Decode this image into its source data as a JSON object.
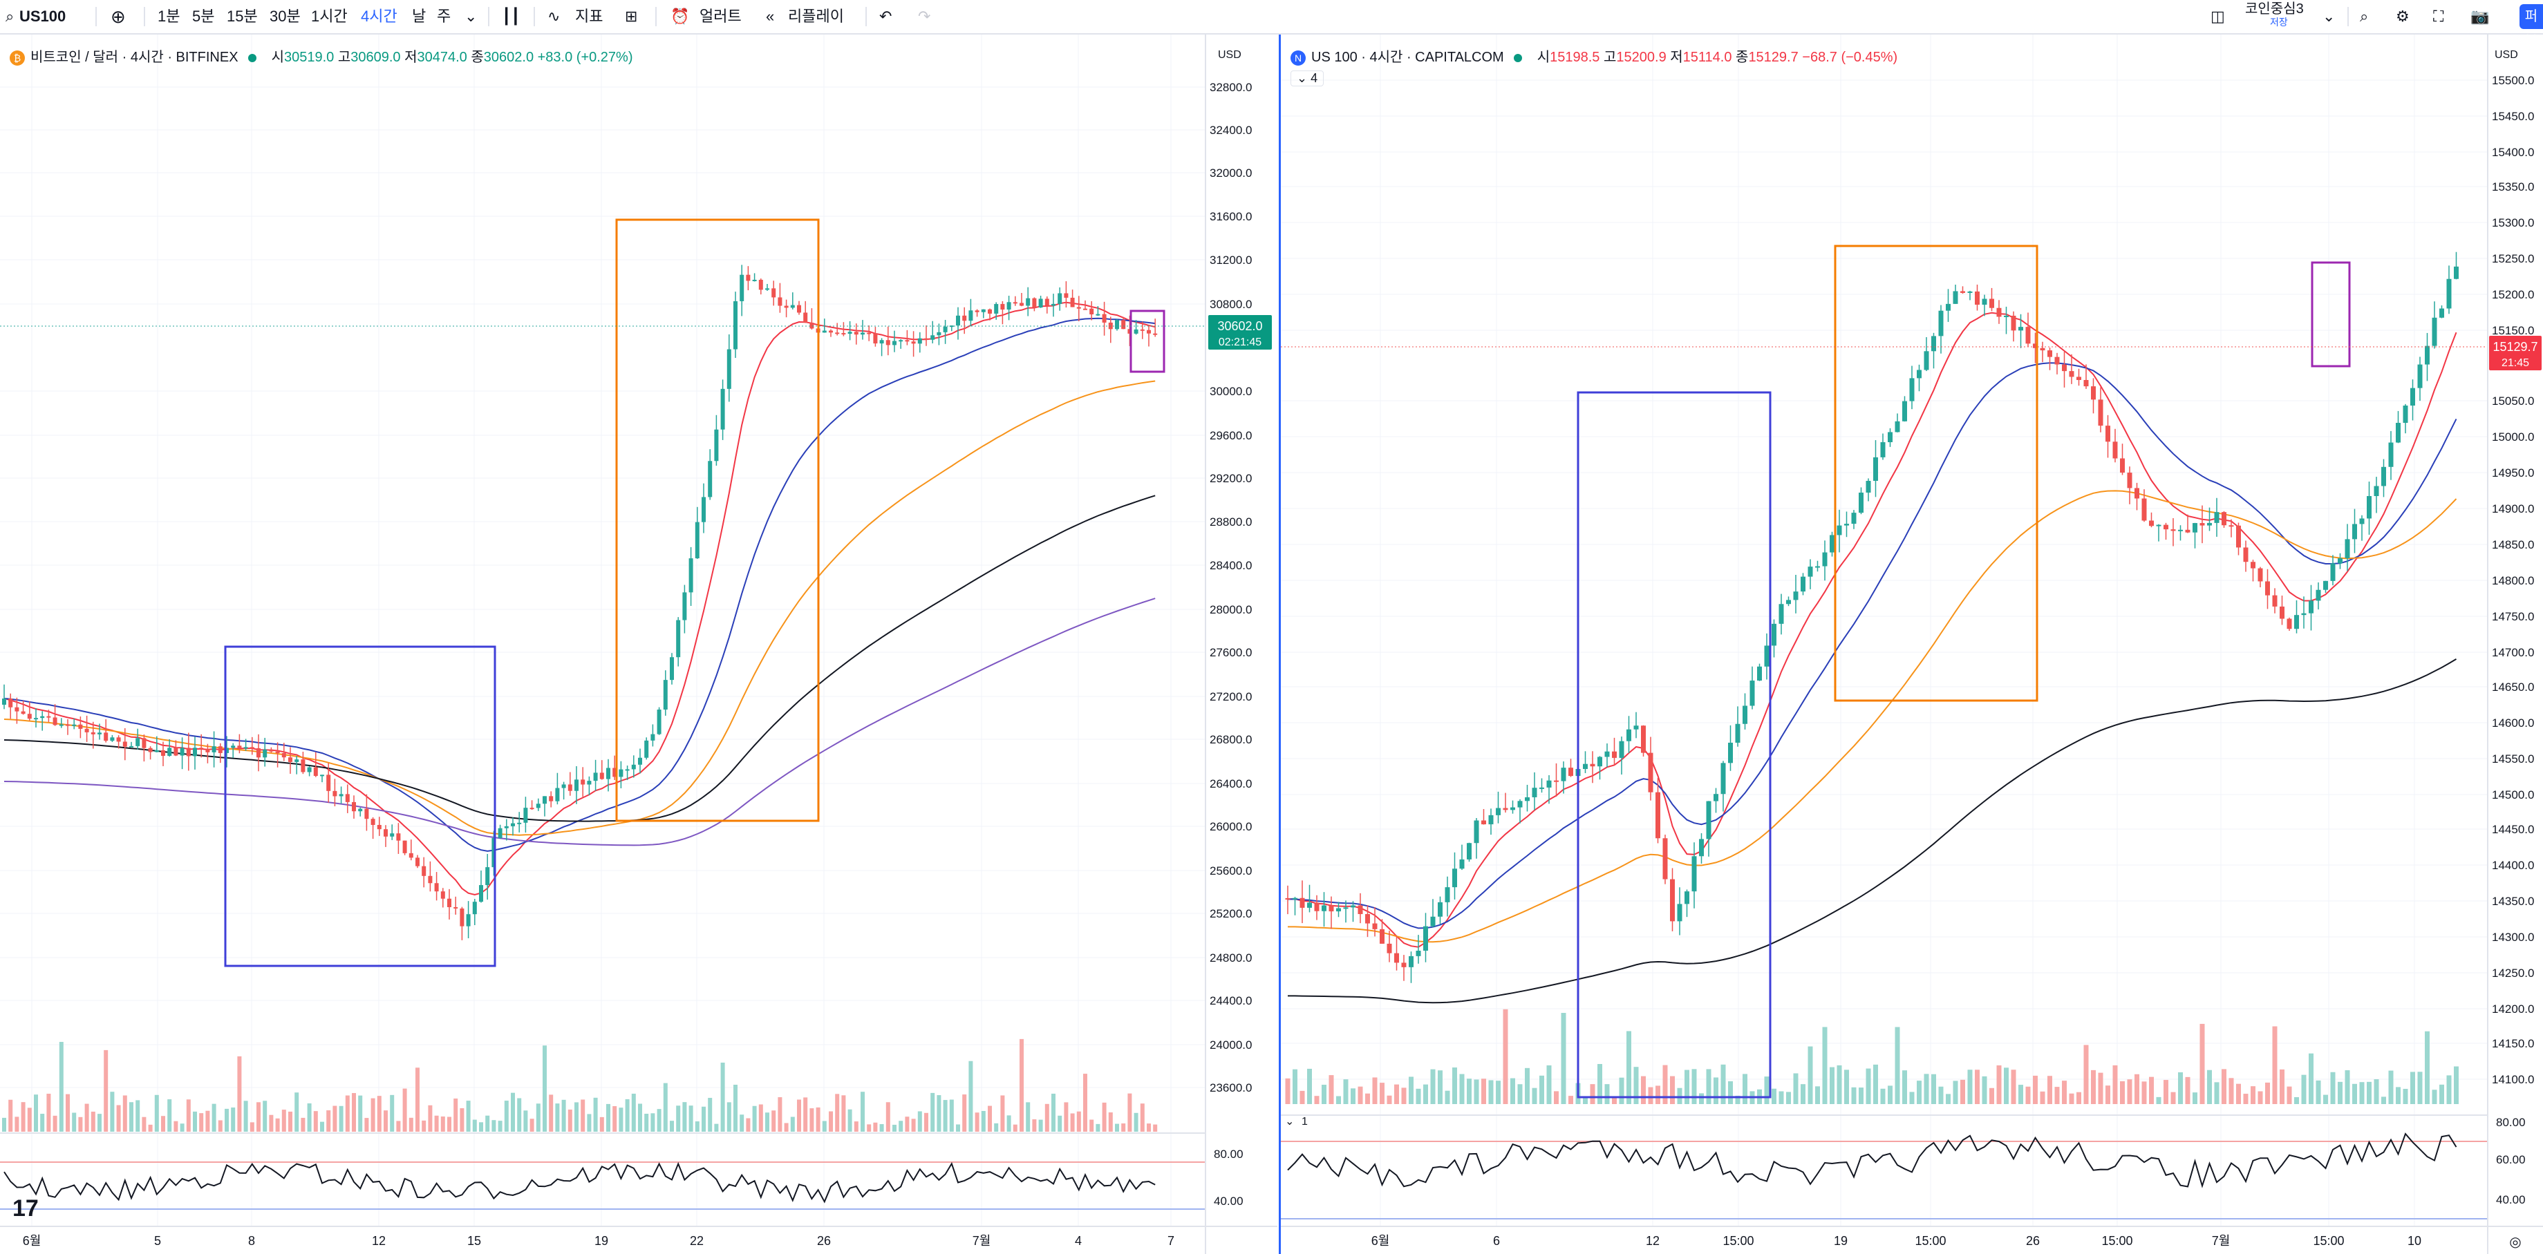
{
  "toolbar": {
    "symbol": "US100",
    "intervals": [
      "1분",
      "5분",
      "15분",
      "30분",
      "1시간",
      "4시간",
      "날",
      "주"
    ],
    "active_interval": "4시간",
    "indicators_label": "지표",
    "alerts_label": "얼러트",
    "replay_label": "리플레이",
    "layout_name": "코인중심3",
    "layout_status": "저장",
    "publish_label": "퍼블"
  },
  "charts": [
    {
      "title": "비트코인 / 달러 · 4시간 · BITFINEX",
      "ohlc": {
        "o_label": "시",
        "o": "30519.0",
        "h_label": "고",
        "h": "30609.0",
        "l_label": "저",
        "l": "30474.0",
        "c_label": "종",
        "c": "30602.0",
        "change": "+83.0 (+0.27%)"
      },
      "currency": "USD",
      "price_ticks": [
        "32800.0",
        "32400.0",
        "32000.0",
        "31600.0",
        "31200.0",
        "30800.0",
        "30000.0",
        "29600.0",
        "29200.0",
        "28800.0",
        "28400.0",
        "28000.0",
        "27600.0",
        "27200.0",
        "26800.0",
        "26400.0",
        "26000.0",
        "25600.0",
        "25200.0",
        "24800.0",
        "24400.0",
        "24000.0",
        "23600.0"
      ],
      "last_price": "30602.0",
      "countdown": "02:21:45",
      "osc_ticks": [
        "80.00",
        "40.00"
      ],
      "time_ticks": [
        "6월",
        "5",
        "8",
        "12",
        "15",
        "19",
        "22",
        "26",
        "7월",
        "4",
        "7"
      ]
    },
    {
      "title": "US 100 · 4시간 · CAPITALCOM",
      "ohlc": {
        "o_label": "시",
        "o": "15198.5",
        "h_label": "고",
        "h": "15200.9",
        "l_label": "저",
        "l": "15114.0",
        "c_label": "종",
        "c": "15129.7",
        "change": "−68.7 (−0.45%)"
      },
      "indicator_count": "4",
      "osc_count": "1",
      "currency": "USD",
      "price_ticks": [
        "15500.0",
        "15450.0",
        "15400.0",
        "15350.0",
        "15300.0",
        "15250.0",
        "15200.0",
        "15150.0",
        "15050.0",
        "15000.0",
        "14950.0",
        "14900.0",
        "14850.0",
        "14800.0",
        "14750.0",
        "14700.0",
        "14650.0",
        "14600.0",
        "14550.0",
        "14500.0",
        "14450.0",
        "14400.0",
        "14350.0",
        "14300.0",
        "14250.0",
        "14200.0",
        "14150.0",
        "14100.0"
      ],
      "last_price": "15129.7",
      "countdown": "21:45",
      "osc_ticks": [
        "80.00",
        "60.00",
        "40.00"
      ],
      "time_ticks": [
        "6월",
        "6",
        "12",
        "15:00",
        "19",
        "15:00",
        "26",
        "15:00",
        "7월",
        "15:00",
        "10"
      ]
    }
  ],
  "colors": {
    "up": "#26a69a",
    "down": "#ef5350",
    "ma_red": "#f23645",
    "ma_blue": "#2a3fb8",
    "ma_orange": "#f7931a",
    "ma_black": "#131722",
    "ma_purple": "#7e57c2",
    "box_blue": "#3f3fd8",
    "box_orange": "#f57c00",
    "box_purple": "#9c27b0"
  }
}
